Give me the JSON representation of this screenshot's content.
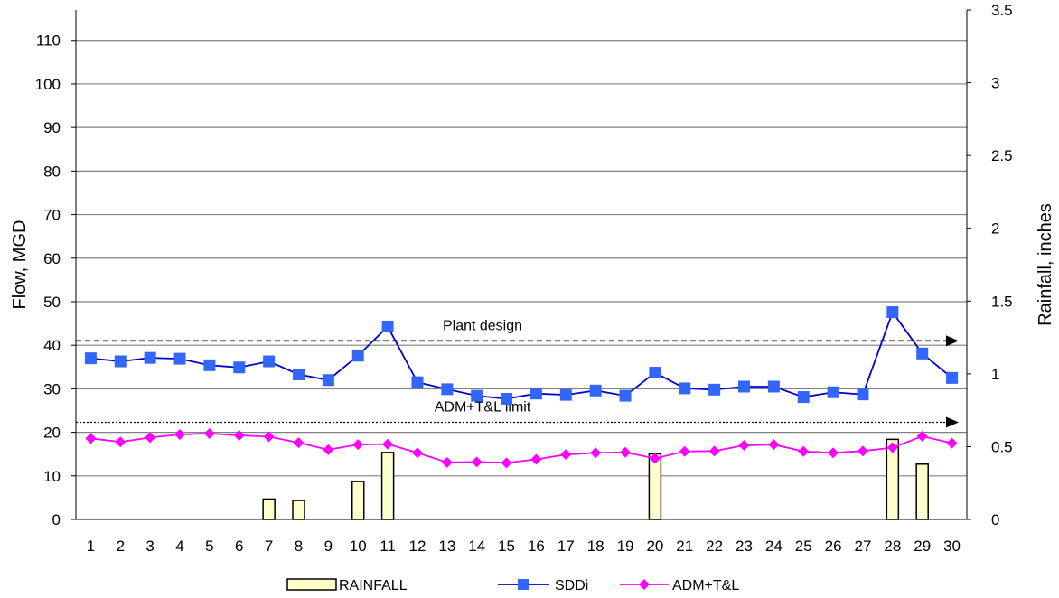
{
  "chart_data": {
    "type": "bar+line",
    "x": [
      1,
      2,
      3,
      4,
      5,
      6,
      7,
      8,
      9,
      10,
      11,
      12,
      13,
      14,
      15,
      16,
      17,
      18,
      19,
      20,
      21,
      22,
      23,
      24,
      25,
      26,
      27,
      28,
      29,
      30
    ],
    "ylabel": "Flow, MGD",
    "y2label": "Rainfall, inches",
    "ylim": [
      0,
      117
    ],
    "y2lim": [
      0,
      3.5
    ],
    "yticks": [
      0,
      10,
      20,
      30,
      40,
      50,
      60,
      70,
      80,
      90,
      100,
      110
    ],
    "y2ticks": [
      "0",
      "0.5",
      "1",
      "1.5",
      "2",
      "2.5",
      "3",
      "3.5"
    ],
    "grid": true,
    "legend_position": "bottom",
    "series": [
      {
        "name": "RAINFALL",
        "kind": "bar",
        "axis": "right",
        "color": "#FFFFCC",
        "values": [
          0,
          0,
          0,
          0,
          0,
          0,
          0.14,
          0.13,
          0,
          0.26,
          0.46,
          0,
          0,
          0,
          0,
          0,
          0,
          0,
          0,
          0.45,
          0,
          0,
          0,
          0,
          0,
          0,
          0,
          0.55,
          0.38,
          0
        ]
      },
      {
        "name": "SDDi",
        "kind": "line",
        "axis": "left",
        "color": "#0000CC",
        "marker": "square",
        "marker_color": "#3366FF",
        "values": [
          37,
          36.3,
          37.1,
          36.9,
          35.4,
          34.9,
          36.3,
          33.3,
          32,
          37.6,
          44.3,
          31.5,
          29.9,
          28.4,
          27.7,
          28.9,
          28.6,
          29.6,
          28.4,
          33.7,
          30.1,
          29.8,
          30.5,
          30.5,
          28.1,
          29.2,
          28.7,
          47.6,
          38.1,
          32.5
        ]
      },
      {
        "name": "ADM+T&L",
        "kind": "line",
        "axis": "left",
        "color": "#FF00FF",
        "marker": "diamond",
        "values": [
          18.6,
          17.8,
          18.8,
          19.5,
          19.7,
          19.3,
          19,
          17.6,
          16,
          17.2,
          17.3,
          15.3,
          13.1,
          13.2,
          13,
          13.8,
          14.9,
          15.3,
          15.4,
          14,
          15.6,
          15.7,
          17,
          17.2,
          15.6,
          15.3,
          15.7,
          16.5,
          19.1,
          17.5
        ]
      }
    ],
    "reference_lines": [
      {
        "label": "Plant design",
        "value": 41,
        "style": "dashed"
      },
      {
        "label": "ADM+T&L limit",
        "value": 22.3,
        "style": "dotted"
      }
    ]
  }
}
